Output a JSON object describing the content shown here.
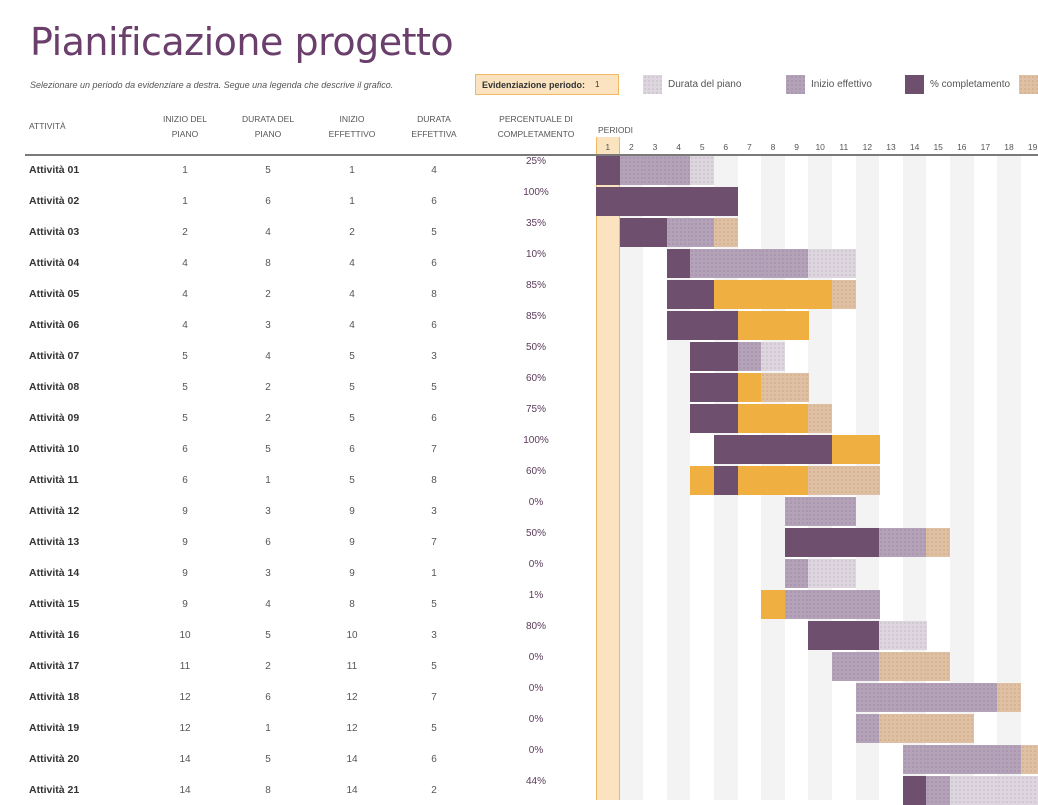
{
  "title": "Pianificazione progetto",
  "subtitle": "Selezionare un periodo da evidenziare a destra.  Segue una legenda che descrive il grafico.",
  "highlight": {
    "label": "Evidenziazione periodo:",
    "value": "1"
  },
  "legend": [
    {
      "label": "Durata del piano",
      "class": "c-plan",
      "icon": "plan-duration-swatch"
    },
    {
      "label": "Inizio effettivo",
      "class": "c-actual",
      "icon": "actual-start-swatch"
    },
    {
      "label": "% completamento",
      "class": "c-done",
      "icon": "percent-complete-swatch"
    },
    {
      "label": "",
      "class": "c-over",
      "icon": "actual-beyond-plan-swatch"
    }
  ],
  "colors": {
    "title": "#6b3f6b",
    "plan": "#ddd6df",
    "actual": "#b4a2b8",
    "complete": "#6e4f6e",
    "actual_beyond_plan": "#dfc0a2",
    "complete_beyond_plan": "#f0b041",
    "highlight": "#fbe3c0"
  },
  "headers": {
    "activity": "ATTIVITÀ",
    "plan_start": [
      "INIZIO DEL",
      "PIANO"
    ],
    "plan_duration": [
      "DURATA DEL",
      "PIANO"
    ],
    "actual_start": [
      "INIZIO",
      "EFFETTIVO"
    ],
    "actual_duration": [
      "DURATA",
      "EFFETTIVA"
    ],
    "percent": [
      "PERCENTUALE DI",
      "COMPLETAMENTO"
    ],
    "periods": "PERIODI"
  },
  "periods": [
    "1",
    "2",
    "3",
    "4",
    "5",
    "6",
    "7",
    "8",
    "9",
    "10",
    "11",
    "12",
    "13",
    "14",
    "15",
    "16",
    "17",
    "18",
    "19"
  ],
  "highlighted_period": 1,
  "tasks": [
    {
      "name": "Attività 01",
      "plan_start": "1",
      "plan_dur": "5",
      "act_start": "1",
      "act_dur": "4",
      "pct": "25%"
    },
    {
      "name": "Attività 02",
      "plan_start": "1",
      "plan_dur": "6",
      "act_start": "1",
      "act_dur": "6",
      "pct": "100%"
    },
    {
      "name": "Attività 03",
      "plan_start": "2",
      "plan_dur": "4",
      "act_start": "2",
      "act_dur": "5",
      "pct": "35%"
    },
    {
      "name": "Attività 04",
      "plan_start": "4",
      "plan_dur": "8",
      "act_start": "4",
      "act_dur": "6",
      "pct": "10%"
    },
    {
      "name": "Attività 05",
      "plan_start": "4",
      "plan_dur": "2",
      "act_start": "4",
      "act_dur": "8",
      "pct": "85%"
    },
    {
      "name": "Attività 06",
      "plan_start": "4",
      "plan_dur": "3",
      "act_start": "4",
      "act_dur": "6",
      "pct": "85%"
    },
    {
      "name": "Attività 07",
      "plan_start": "5",
      "plan_dur": "4",
      "act_start": "5",
      "act_dur": "3",
      "pct": "50%"
    },
    {
      "name": "Attività 08",
      "plan_start": "5",
      "plan_dur": "2",
      "act_start": "5",
      "act_dur": "5",
      "pct": "60%"
    },
    {
      "name": "Attività 09",
      "plan_start": "5",
      "plan_dur": "2",
      "act_start": "5",
      "act_dur": "6",
      "pct": "75%"
    },
    {
      "name": "Attività 10",
      "plan_start": "6",
      "plan_dur": "5",
      "act_start": "6",
      "act_dur": "7",
      "pct": "100%"
    },
    {
      "name": "Attività 11",
      "plan_start": "6",
      "plan_dur": "1",
      "act_start": "5",
      "act_dur": "8",
      "pct": "60%"
    },
    {
      "name": "Attività 12",
      "plan_start": "9",
      "plan_dur": "3",
      "act_start": "9",
      "act_dur": "3",
      "pct": "0%"
    },
    {
      "name": "Attività 13",
      "plan_start": "9",
      "plan_dur": "6",
      "act_start": "9",
      "act_dur": "7",
      "pct": "50%"
    },
    {
      "name": "Attività 14",
      "plan_start": "9",
      "plan_dur": "3",
      "act_start": "9",
      "act_dur": "1",
      "pct": "0%"
    },
    {
      "name": "Attività 15",
      "plan_start": "9",
      "plan_dur": "4",
      "act_start": "8",
      "act_dur": "5",
      "pct": "1%"
    },
    {
      "name": "Attività 16",
      "plan_start": "10",
      "plan_dur": "5",
      "act_start": "10",
      "act_dur": "3",
      "pct": "80%"
    },
    {
      "name": "Attività 17",
      "plan_start": "11",
      "plan_dur": "2",
      "act_start": "11",
      "act_dur": "5",
      "pct": "0%"
    },
    {
      "name": "Attività 18",
      "plan_start": "12",
      "plan_dur": "6",
      "act_start": "12",
      "act_dur": "7",
      "pct": "0%"
    },
    {
      "name": "Attività 19",
      "plan_start": "12",
      "plan_dur": "1",
      "act_start": "12",
      "act_dur": "5",
      "pct": "0%"
    },
    {
      "name": "Attività 20",
      "plan_start": "14",
      "plan_dur": "5",
      "act_start": "14",
      "act_dur": "6",
      "pct": "0%"
    },
    {
      "name": "Attività 21",
      "plan_start": "14",
      "plan_dur": "8",
      "act_start": "14",
      "act_dur": "2",
      "pct": "44%"
    }
  ]
}
